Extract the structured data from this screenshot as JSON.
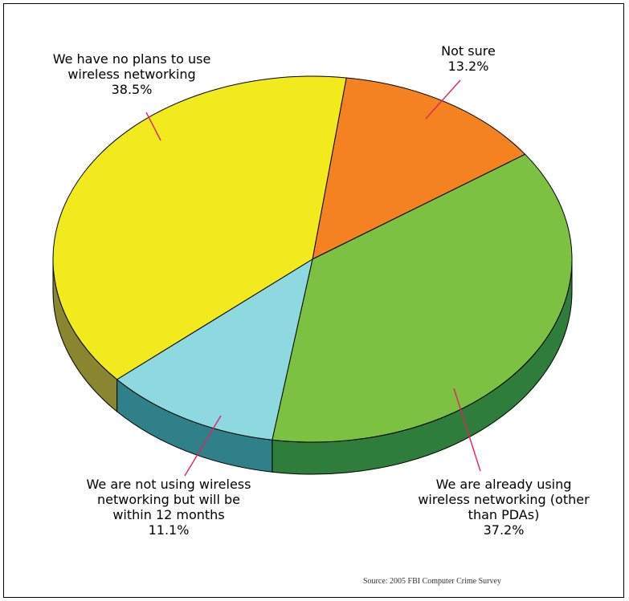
{
  "chart_data": {
    "type": "pie",
    "style": "3d",
    "slices": [
      {
        "label_lines": [
          "Not sure",
          "13.2%"
        ],
        "label": "Not sure",
        "value": 13.2,
        "color": "#f58220",
        "side_color": "#b05a10"
      },
      {
        "label_lines": [
          "We are already using",
          "wireless networking (other",
          "than PDAs)",
          "37.2%"
        ],
        "label": "We are already using wireless networking (other than PDAs)",
        "value": 37.2,
        "color": "#7dc142",
        "side_color": "#2e7d3a"
      },
      {
        "label_lines": [
          "We are not using wireless",
          "networking but will be",
          "within 12 months",
          "11.1%"
        ],
        "label": "We are not using wireless networking but will be within 12 months",
        "value": 11.1,
        "color": "#8ed8e0",
        "side_color": "#2f8088"
      },
      {
        "label_lines": [
          "We have no plans to use",
          "wireless networking",
          "38.5%"
        ],
        "label": "We have no plans to use wireless networking",
        "value": 38.5,
        "color": "#f2ea1c",
        "side_color": "#8a8630"
      }
    ],
    "source": "Source: 2005 FBI Computer Crime Survey",
    "leader_color": "#e0245e"
  }
}
